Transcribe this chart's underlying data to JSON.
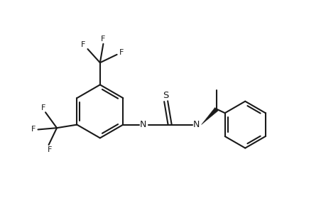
{
  "bg_color": "#ffffff",
  "line_color": "#1a1a1a",
  "line_width": 1.5,
  "fig_width": 4.6,
  "fig_height": 3.0,
  "dpi": 100,
  "xlim": [
    0,
    10
  ],
  "ylim": [
    0,
    6.5
  ]
}
